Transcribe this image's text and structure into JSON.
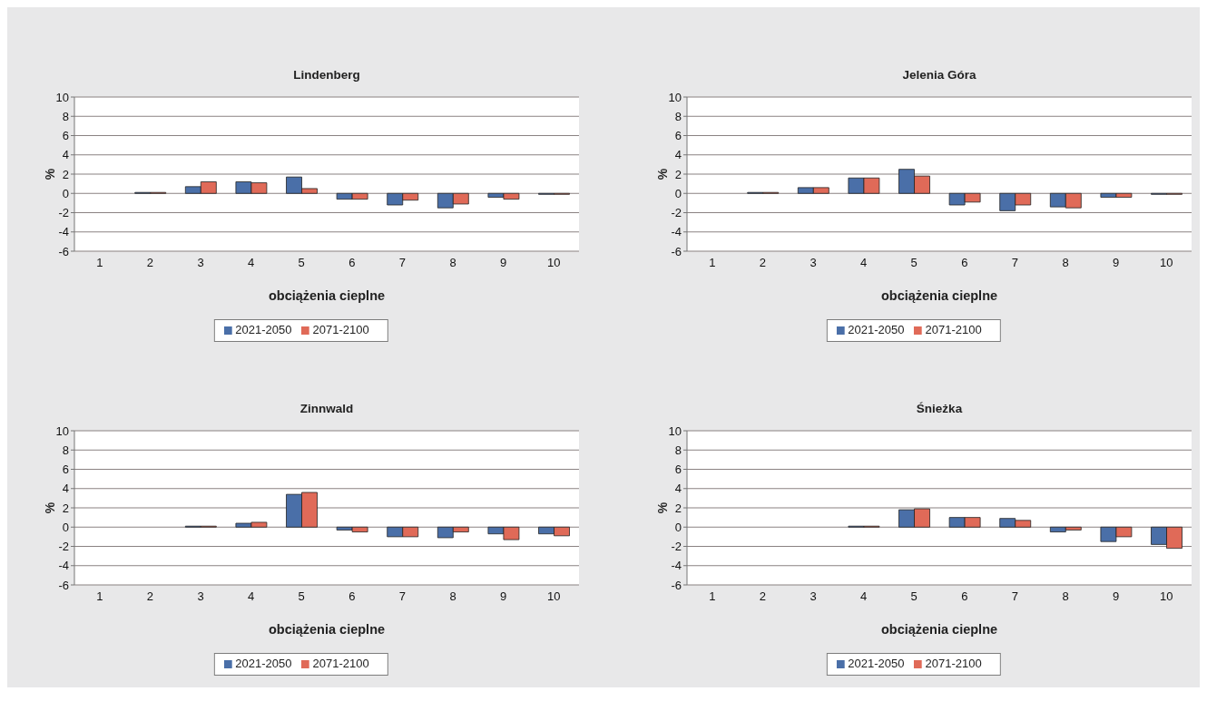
{
  "chart_data": [
    {
      "type": "bar",
      "title": "Lindenberg",
      "xlabel": "obciążenia cieplne",
      "ylabel": "%",
      "categories": [
        "1",
        "2",
        "3",
        "4",
        "5",
        "6",
        "7",
        "8",
        "9",
        "10"
      ],
      "series": [
        {
          "name": "2021-2050",
          "color": "#4a6fa8",
          "values": [
            0,
            0.1,
            0.7,
            1.2,
            1.7,
            -0.6,
            -1.2,
            -1.5,
            -0.4,
            -0.1
          ]
        },
        {
          "name": "2071-2100",
          "color": "#e06a58",
          "values": [
            0,
            0.1,
            1.2,
            1.1,
            0.5,
            -0.6,
            -0.7,
            -1.1,
            -0.6,
            -0.1
          ]
        }
      ],
      "ylim": [
        -6,
        10
      ],
      "yticks": [
        -6,
        -4,
        -2,
        0,
        2,
        4,
        6,
        8,
        10
      ],
      "grid": "y",
      "legend": "bottom"
    },
    {
      "type": "bar",
      "title": "Jelenia Góra",
      "xlabel": "obciążenia cieplne",
      "ylabel": "%",
      "categories": [
        "1",
        "2",
        "3",
        "4",
        "5",
        "6",
        "7",
        "8",
        "9",
        "10"
      ],
      "series": [
        {
          "name": "2021-2050",
          "color": "#4a6fa8",
          "values": [
            0,
            0.1,
            0.6,
            1.6,
            2.5,
            -1.2,
            -1.8,
            -1.4,
            -0.4,
            -0.1
          ]
        },
        {
          "name": "2071-2100",
          "color": "#e06a58",
          "values": [
            0,
            0.1,
            0.6,
            1.6,
            1.8,
            -0.9,
            -1.2,
            -1.5,
            -0.4,
            -0.1
          ]
        }
      ],
      "ylim": [
        -6,
        10
      ],
      "yticks": [
        -6,
        -4,
        -2,
        0,
        2,
        4,
        6,
        8,
        10
      ],
      "grid": "y",
      "legend": "bottom"
    },
    {
      "type": "bar",
      "title": "Zinnwald",
      "xlabel": "obciążenia cieplne",
      "ylabel": "%",
      "categories": [
        "1",
        "2",
        "3",
        "4",
        "5",
        "6",
        "7",
        "8",
        "9",
        "10"
      ],
      "series": [
        {
          "name": "2021-2050",
          "color": "#4a6fa8",
          "values": [
            0,
            0,
            0.1,
            0.4,
            3.4,
            -0.3,
            -1.0,
            -1.1,
            -0.7,
            -0.7
          ]
        },
        {
          "name": "2071-2100",
          "color": "#e06a58",
          "values": [
            0,
            0,
            0.1,
            0.5,
            3.6,
            -0.5,
            -1.0,
            -0.5,
            -1.3,
            -0.9
          ]
        }
      ],
      "ylim": [
        -6,
        10
      ],
      "yticks": [
        -6,
        -4,
        -2,
        0,
        2,
        4,
        6,
        8,
        10
      ],
      "grid": "y",
      "legend": "bottom"
    },
    {
      "type": "bar",
      "title": "Śnieżka",
      "xlabel": "obciążenia cieplne",
      "ylabel": "%",
      "categories": [
        "1",
        "2",
        "3",
        "4",
        "5",
        "6",
        "7",
        "8",
        "9",
        "10"
      ],
      "series": [
        {
          "name": "2021-2050",
          "color": "#4a6fa8",
          "values": [
            0,
            0,
            0,
            0.1,
            1.8,
            1.0,
            0.9,
            -0.5,
            -1.5,
            -1.8
          ]
        },
        {
          "name": "2071-2100",
          "color": "#e06a58",
          "values": [
            0,
            0,
            0,
            0.1,
            1.9,
            1.0,
            0.7,
            -0.3,
            -1.0,
            -2.2
          ]
        }
      ],
      "ylim": [
        -6,
        10
      ],
      "yticks": [
        -6,
        -4,
        -2,
        0,
        2,
        4,
        6,
        8,
        10
      ],
      "grid": "y",
      "legend": "bottom"
    }
  ]
}
